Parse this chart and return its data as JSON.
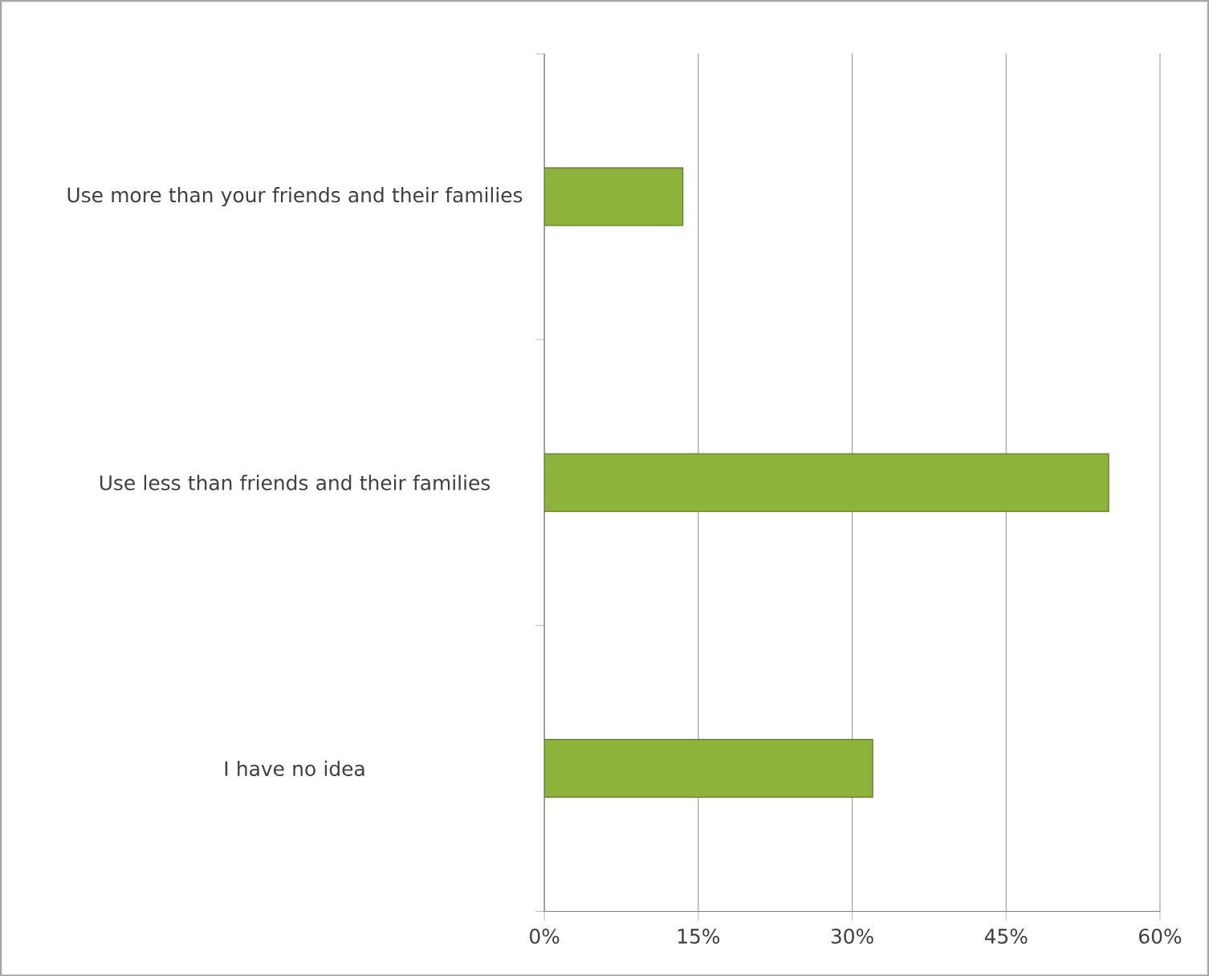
{
  "chart_data": {
    "type": "bar",
    "orientation": "horizontal",
    "categories": [
      "Use more than your friends and their families",
      "Use less than friends and their families",
      "I have no idea"
    ],
    "values": [
      13.5,
      55,
      32
    ],
    "color": "#8db33a",
    "xlim": [
      0,
      60
    ],
    "xticks": [
      {
        "value": 0,
        "label": "0%"
      },
      {
        "value": 15,
        "label": "15%"
      },
      {
        "value": 30,
        "label": "30%"
      },
      {
        "value": 45,
        "label": "45%"
      },
      {
        "value": 60,
        "label": "60%"
      }
    ],
    "grid": "x"
  }
}
